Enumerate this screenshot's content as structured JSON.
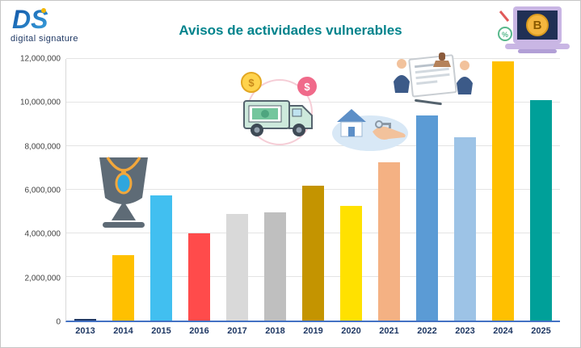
{
  "logo": {
    "brand": "DS",
    "subtitle": "digital signature"
  },
  "chart_data": {
    "type": "bar",
    "title": "Avisos de actividades vulnerables",
    "categories": [
      "2013",
      "2014",
      "2015",
      "2016",
      "2017",
      "2018",
      "2019",
      "2020",
      "2021",
      "2022",
      "2023",
      "2024",
      "2025"
    ],
    "values": [
      50000,
      3000000,
      5750000,
      4000000,
      4900000,
      4950000,
      6200000,
      5250000,
      7250000,
      9400000,
      8400000,
      11900000,
      10100000
    ],
    "bar_colors": [
      "#1F3864",
      "#FFC000",
      "#41BFF0",
      "#FF4B4B",
      "#D9D9D9",
      "#BFBFBF",
      "#C49400",
      "#FFE100",
      "#F4B183",
      "#5B9BD5",
      "#9DC3E6",
      "#FFC000",
      "#00A099"
    ],
    "ylim": [
      0,
      12000000
    ],
    "yticks": [
      0,
      2000000,
      4000000,
      6000000,
      8000000,
      10000000,
      12000000
    ],
    "ytick_labels": [
      "0",
      "2,000,000",
      "4,000,000",
      "6,000,000",
      "8,000,000",
      "10,000,000",
      "12,000,000"
    ],
    "xlabel": "",
    "ylabel": "",
    "grid": true,
    "legend": false,
    "colors": {
      "title": "#00838C",
      "x_tick_label": "#1F3864",
      "y_tick_label": "#3f3f3f",
      "x_axis_line": "#4472C4",
      "gridline": "#e4e4e4"
    }
  },
  "icons": {
    "dollar": "$",
    "percent": "%",
    "bitcoin": "B"
  }
}
